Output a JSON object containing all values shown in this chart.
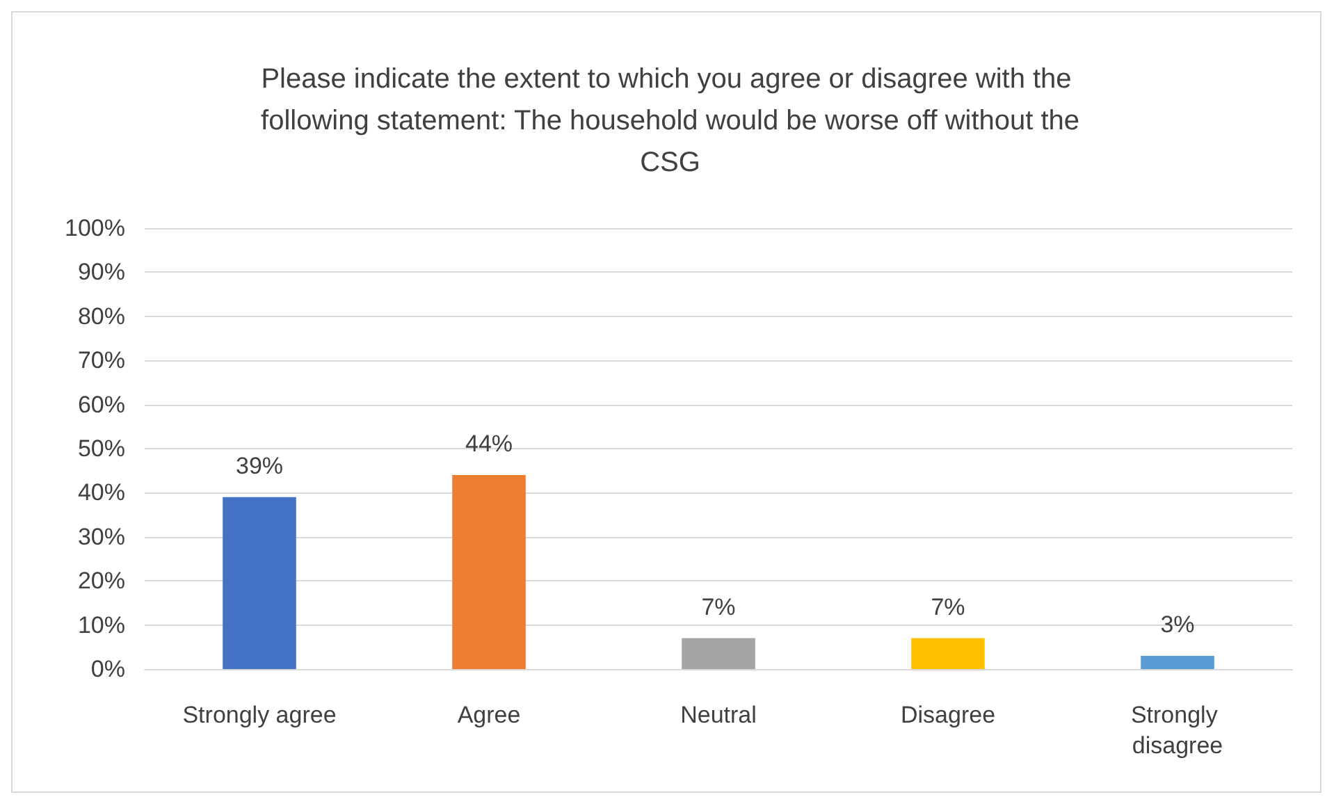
{
  "chart_data": {
    "type": "bar",
    "title": "Please indicate the extent to which you agree or disagree with the following statement: The household would be worse off without the CSG",
    "categories": [
      "Strongly agree",
      "Agree",
      "Neutral",
      "Disagree",
      "Strongly disagree"
    ],
    "values": [
      39,
      44,
      7,
      7,
      3
    ],
    "colors": [
      "#4472c4",
      "#ed7d31",
      "#a5a5a5",
      "#ffc000",
      "#5b9bd5"
    ],
    "value_labels": [
      "39%",
      "44%",
      "7%",
      "7%",
      "3%"
    ],
    "ylim": [
      0,
      100
    ],
    "yticks": [
      {
        "value": 0,
        "label": "0%"
      },
      {
        "value": 10,
        "label": "10%"
      },
      {
        "value": 20,
        "label": "20%"
      },
      {
        "value": 30,
        "label": "30%"
      },
      {
        "value": 40,
        "label": "40%"
      },
      {
        "value": 50,
        "label": "50%"
      },
      {
        "value": 60,
        "label": "60%"
      },
      {
        "value": 70,
        "label": "70%"
      },
      {
        "value": 80,
        "label": "80%"
      },
      {
        "value": 90,
        "label": "90%"
      },
      {
        "value": 100,
        "label": "100%"
      }
    ],
    "grid": "y"
  }
}
